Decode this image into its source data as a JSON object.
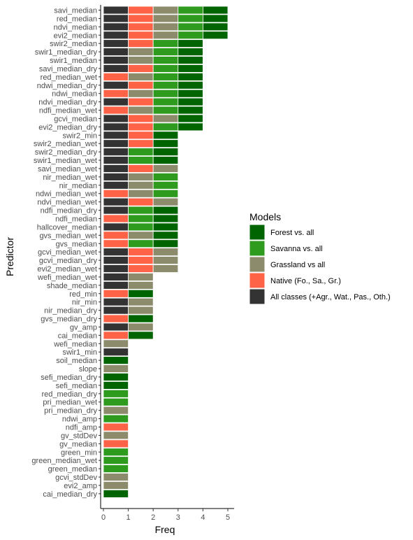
{
  "chart_data": {
    "type": "bar",
    "orientation": "horizontal",
    "stacked": true,
    "xlabel": "Freq",
    "ylabel": "Predictor",
    "xlim": [
      0,
      5
    ],
    "x_ticks": [
      "0",
      "1",
      "2",
      "3",
      "4",
      "5"
    ],
    "grid": false,
    "legend": {
      "title": "Models",
      "position": "right",
      "entries": [
        {
          "key": "forest",
          "label": "Forest vs. all",
          "color": "#006400"
        },
        {
          "key": "savanna",
          "label": "Savanna vs. all",
          "color": "#2E9B1F"
        },
        {
          "key": "grassland",
          "label": "Grassland vs all",
          "color": "#8C8B6B"
        },
        {
          "key": "native",
          "label": "Native (Fo., Sa., Gr.)",
          "color": "#FF6347"
        },
        {
          "key": "all",
          "label": "All classes (+Agr., Wat., Pas., Oth.)",
          "color": "#333333"
        }
      ]
    },
    "categories": [
      {
        "name": "savi_median",
        "stack": [
          "all",
          "native",
          "grassland",
          "savanna",
          "forest"
        ]
      },
      {
        "name": "red_median",
        "stack": [
          "all",
          "native",
          "grassland",
          "savanna",
          "forest"
        ]
      },
      {
        "name": "ndvi_median",
        "stack": [
          "all",
          "native",
          "grassland",
          "savanna",
          "forest"
        ]
      },
      {
        "name": "evi2_median",
        "stack": [
          "all",
          "native",
          "grassland",
          "savanna",
          "forest"
        ]
      },
      {
        "name": "swir2_median",
        "stack": [
          "all",
          "native",
          "savanna",
          "forest"
        ]
      },
      {
        "name": "swir1_median_dry",
        "stack": [
          "all",
          "grassland",
          "savanna",
          "forest"
        ]
      },
      {
        "name": "swir1_median",
        "stack": [
          "all",
          "grassland",
          "savanna",
          "forest"
        ]
      },
      {
        "name": "savi_median_dry",
        "stack": [
          "all",
          "native",
          "savanna",
          "forest"
        ]
      },
      {
        "name": "red_median_wet",
        "stack": [
          "native",
          "grassland",
          "savanna",
          "forest"
        ]
      },
      {
        "name": "ndwi_median_dry",
        "stack": [
          "all",
          "native",
          "savanna",
          "forest"
        ]
      },
      {
        "name": "ndwi_median",
        "stack": [
          "native",
          "grassland",
          "savanna",
          "forest"
        ]
      },
      {
        "name": "ndvi_median_dry",
        "stack": [
          "all",
          "native",
          "savanna",
          "forest"
        ]
      },
      {
        "name": "ndfi_median_wet",
        "stack": [
          "native",
          "grassland",
          "savanna",
          "forest"
        ]
      },
      {
        "name": "gcvi_median",
        "stack": [
          "all",
          "native",
          "grassland",
          "forest"
        ]
      },
      {
        "name": "evi2_median_dry",
        "stack": [
          "all",
          "native",
          "savanna",
          "forest"
        ]
      },
      {
        "name": "swir2_min",
        "stack": [
          "all",
          "native",
          "forest"
        ]
      },
      {
        "name": "swir2_median_wet",
        "stack": [
          "all",
          "native",
          "forest"
        ]
      },
      {
        "name": "swir2_median_dry",
        "stack": [
          "all",
          "savanna",
          "forest"
        ]
      },
      {
        "name": "swir1_median_wet",
        "stack": [
          "all",
          "savanna",
          "forest"
        ]
      },
      {
        "name": "savi_median_wet",
        "stack": [
          "all",
          "native",
          "grassland"
        ]
      },
      {
        "name": "nir_median_wet",
        "stack": [
          "all",
          "grassland",
          "savanna"
        ]
      },
      {
        "name": "nir_median",
        "stack": [
          "all",
          "grassland",
          "savanna"
        ]
      },
      {
        "name": "ndwi_median_wet",
        "stack": [
          "native",
          "grassland",
          "savanna"
        ]
      },
      {
        "name": "ndvi_median_wet",
        "stack": [
          "all",
          "native",
          "grassland"
        ]
      },
      {
        "name": "ndfi_median_dry",
        "stack": [
          "all",
          "savanna",
          "forest"
        ]
      },
      {
        "name": "ndfi_median",
        "stack": [
          "native",
          "savanna",
          "forest"
        ]
      },
      {
        "name": "hallcover_median",
        "stack": [
          "all",
          "savanna",
          "forest"
        ]
      },
      {
        "name": "gvs_median_wet",
        "stack": [
          "native",
          "grassland",
          "forest"
        ]
      },
      {
        "name": "gvs_median",
        "stack": [
          "native",
          "savanna",
          "forest"
        ]
      },
      {
        "name": "gcvi_median_wet",
        "stack": [
          "all",
          "native",
          "grassland"
        ]
      },
      {
        "name": "gcvi_median_dry",
        "stack": [
          "all",
          "native",
          "grassland"
        ]
      },
      {
        "name": "evi2_median_wet",
        "stack": [
          "all",
          "native",
          "grassland"
        ]
      },
      {
        "name": "wefi_median_wet",
        "stack": [
          "all",
          "grassland"
        ]
      },
      {
        "name": "shade_median",
        "stack": [
          "all",
          "grassland"
        ]
      },
      {
        "name": "red_min",
        "stack": [
          "native",
          "forest"
        ]
      },
      {
        "name": "nir_min",
        "stack": [
          "all",
          "grassland"
        ]
      },
      {
        "name": "nir_median_dry",
        "stack": [
          "all",
          "grassland"
        ]
      },
      {
        "name": "gvs_median_dry",
        "stack": [
          "native",
          "forest"
        ]
      },
      {
        "name": "gv_amp",
        "stack": [
          "all",
          "grassland"
        ]
      },
      {
        "name": "cai_median",
        "stack": [
          "native",
          "forest"
        ]
      },
      {
        "name": "wefi_median",
        "stack": [
          "grassland"
        ]
      },
      {
        "name": "swir1_min",
        "stack": [
          "all"
        ]
      },
      {
        "name": "soil_median",
        "stack": [
          "forest"
        ]
      },
      {
        "name": "slope",
        "stack": [
          "grassland"
        ]
      },
      {
        "name": "sefi_median_dry",
        "stack": [
          "forest"
        ]
      },
      {
        "name": "sefi_median",
        "stack": [
          "forest"
        ]
      },
      {
        "name": "red_median_dry",
        "stack": [
          "savanna"
        ]
      },
      {
        "name": "pri_median_wet",
        "stack": [
          "savanna"
        ]
      },
      {
        "name": "pri_median_dry",
        "stack": [
          "grassland"
        ]
      },
      {
        "name": "ndwi_amp",
        "stack": [
          "savanna"
        ]
      },
      {
        "name": "ndfi_amp",
        "stack": [
          "native"
        ]
      },
      {
        "name": "gv_stdDev",
        "stack": [
          "grassland"
        ]
      },
      {
        "name": "gv_median",
        "stack": [
          "native"
        ]
      },
      {
        "name": "green_min",
        "stack": [
          "savanna"
        ]
      },
      {
        "name": "green_median_wet",
        "stack": [
          "savanna"
        ]
      },
      {
        "name": "green_median",
        "stack": [
          "savanna"
        ]
      },
      {
        "name": "gcvi_stdDev",
        "stack": [
          "grassland"
        ]
      },
      {
        "name": "evi2_amp",
        "stack": [
          "grassland"
        ]
      },
      {
        "name": "cai_median_dry",
        "stack": [
          "forest"
        ]
      }
    ]
  }
}
